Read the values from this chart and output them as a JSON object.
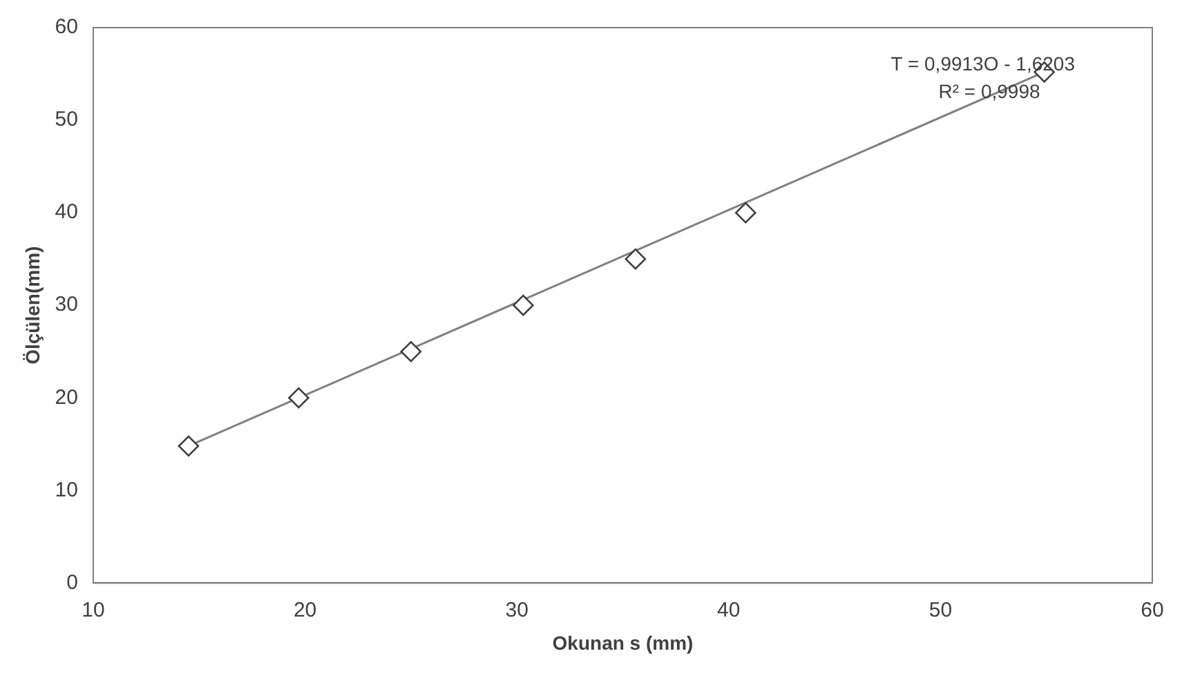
{
  "chart_data": {
    "type": "scatter",
    "xlabel": "Okunan s (mm)",
    "ylabel": "Ölçülen(mm)",
    "xlim": [
      10,
      60
    ],
    "xticks": [
      10,
      20,
      30,
      40,
      50,
      60
    ],
    "ylim": [
      0,
      60
    ],
    "yticks": [
      0,
      10,
      20,
      30,
      40,
      50,
      60
    ],
    "grid": false,
    "legend": false,
    "marker": "diamond",
    "series": [
      {
        "color": "#404040",
        "x": [
          14.5,
          19.7,
          25,
          30.3,
          35.6,
          40.8,
          54.9
        ],
        "values": [
          14.8,
          20,
          25,
          30,
          35,
          40,
          55.2
        ]
      },
      {
        "type": "line",
        "color": "#808080",
        "marker": "none",
        "x": [
          14.5,
          54.9
        ],
        "values": [
          14.8,
          55.2
        ]
      }
    ],
    "annotations": [
      "T = 0,9913O - 1,6203",
      "R² = 0,9998"
    ]
  }
}
